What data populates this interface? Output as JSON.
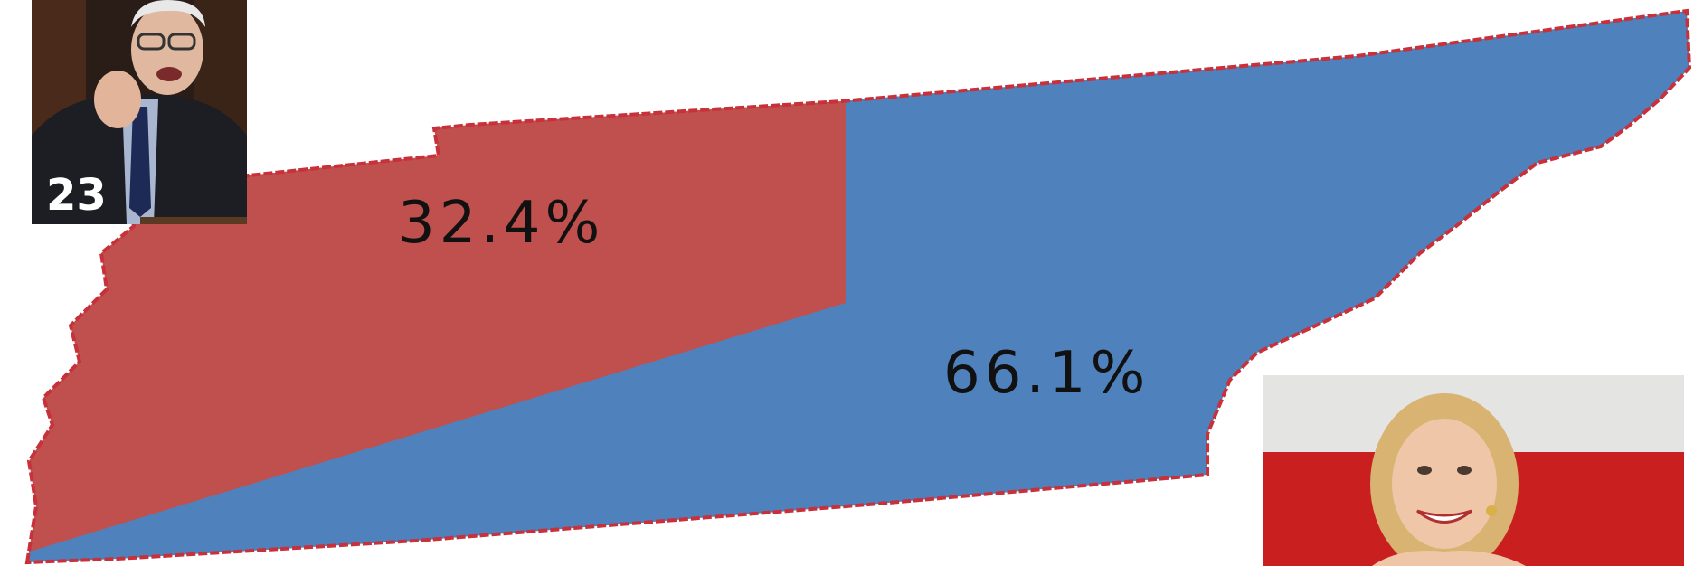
{
  "map": {
    "region_left_color": "#c0504d",
    "region_right_color": "#4f81bd",
    "border_color": "#c8303a"
  },
  "results": {
    "left_percent": "32.4%",
    "right_percent": "66.1%",
    "left_share": 32.4,
    "right_share": 66.1
  },
  "candidates": {
    "left_photo": {
      "icon": "candidate-photo-man",
      "delegates": "23"
    },
    "right_photo": {
      "icon": "candidate-photo-woman"
    }
  }
}
